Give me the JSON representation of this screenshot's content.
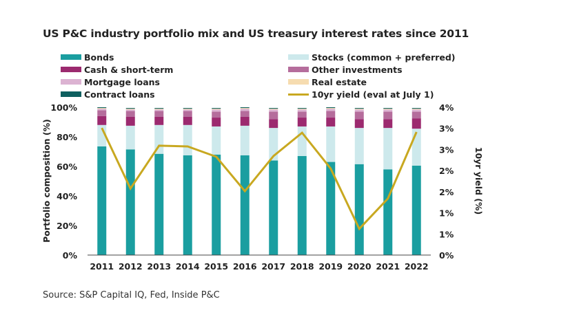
{
  "title": "US P&C industry portfolio mix and US treasury interest rates since 2011",
  "source": "Source: S&P Capital IQ, Fed, Inside P&C",
  "chart_data": {
    "type": "bar",
    "stacked": true,
    "categories": [
      "2011",
      "2012",
      "2013",
      "2014",
      "2015",
      "2016",
      "2017",
      "2018",
      "2019",
      "2020",
      "2021",
      "2022"
    ],
    "series": [
      {
        "name": "Bonds",
        "color": "#1a9ea0",
        "values": [
          73.5,
          71.5,
          68.5,
          67.5,
          68,
          67.5,
          64,
          67,
          63,
          61.5,
          58,
          60.5
        ]
      },
      {
        "name": "Stocks (common + preferred)",
        "color": "#cde9ec",
        "values": [
          14.5,
          16,
          19.5,
          20.5,
          19,
          20,
          22,
          20,
          24,
          24.5,
          28,
          25
        ]
      },
      {
        "name": "Cash & short-term",
        "color": "#9c2a6f",
        "values": [
          6,
          6,
          5.5,
          5.5,
          6,
          6,
          6,
          6,
          6,
          6,
          6,
          7
        ]
      },
      {
        "name": "Other investments",
        "color": "#b56d9c",
        "values": [
          4,
          4,
          4,
          4,
          4,
          4,
          5,
          4,
          4.5,
          5,
          5,
          4.5
        ]
      },
      {
        "name": "Mortgage loans",
        "color": "#dcb3d2",
        "values": [
          1,
          1,
          1,
          1,
          1.5,
          1.5,
          1.5,
          1.5,
          1.5,
          1.5,
          1.5,
          1.5
        ]
      },
      {
        "name": "Real estate",
        "color": "#f6dcb0",
        "values": [
          0.5,
          0.5,
          0.5,
          0.5,
          0.5,
          0.5,
          0.5,
          0.5,
          0.5,
          0.5,
          0.5,
          0.5
        ]
      },
      {
        "name": "Contract loans",
        "color": "#0e5f5f",
        "values": [
          0.5,
          0.5,
          0.5,
          0.5,
          0.5,
          0.5,
          0.5,
          0.5,
          0.5,
          0.5,
          0.5,
          0.5
        ]
      }
    ],
    "line_series": {
      "name": "10yr yield (eval at July 1)",
      "color": "#c8a820",
      "axis": "right",
      "values": [
        3.44,
        1.8,
        2.96,
        2.94,
        2.66,
        1.73,
        2.68,
        3.31,
        2.34,
        0.71,
        1.53,
        3.33
      ]
    },
    "ylabel": "Portfolio composition (%)",
    "y2label": "10yr yield (%)",
    "ylim": [
      0,
      100
    ],
    "y2lim": [
      0,
      4
    ],
    "yticks": [
      "0%",
      "20%",
      "40%",
      "60%",
      "80%",
      "100%"
    ],
    "y2ticks": [
      "0%",
      "1%",
      "1%",
      "2%",
      "2%",
      "3%",
      "3%",
      "4%"
    ],
    "grid": false,
    "legend_placement": "top"
  }
}
